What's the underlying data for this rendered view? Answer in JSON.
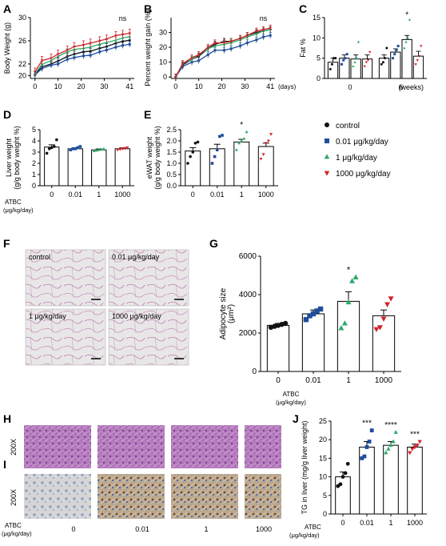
{
  "panels": {
    "A": "A",
    "B": "B",
    "C": "C",
    "D": "D",
    "E": "E",
    "F": "F",
    "G": "G",
    "H": "H",
    "I": "I",
    "J": "J"
  },
  "colors": {
    "control": "#111111",
    "d001": "#1f4e9c",
    "d1": "#2bab6d",
    "d1000": "#d0232a"
  },
  "legend": {
    "items": [
      {
        "label": "control",
        "marker": "circle",
        "color": "#111111"
      },
      {
        "label": "0.01 μg/kg/day",
        "marker": "square",
        "color": "#1f4e9c"
      },
      {
        "label": "1 μg/kg/day",
        "marker": "triangle-up",
        "color": "#2bab6d"
      },
      {
        "label": "1000  μg/kg/day",
        "marker": "triangle-down",
        "color": "#d0232a"
      }
    ]
  },
  "atbc_label_1": "ATBC",
  "atbc_label_2": "(μg/kg/day)",
  "histology": {
    "F_labels": [
      "control",
      "0.01 μg/kg/day",
      "1 μg/kg/day",
      "1000 μg/kg/day"
    ],
    "H_side": "200X",
    "I_side": "200X",
    "I_dose_labels": [
      "0",
      "0.01",
      "1",
      "1000"
    ]
  },
  "chart_data": [
    {
      "id": "A",
      "type": "line",
      "ylabel": "Body Weight (g)",
      "xlabel": "",
      "x": [
        0,
        3,
        7,
        10,
        14,
        17,
        21,
        24,
        28,
        31,
        35,
        38,
        41
      ],
      "xticks": [
        "0",
        "10",
        "20",
        "30",
        "41"
      ],
      "xtick_values": [
        0,
        10,
        20,
        30,
        41
      ],
      "yticks": [
        "20",
        "22",
        "26",
        "30"
      ],
      "ytick_values": [
        20,
        22,
        26,
        30
      ],
      "ylim": [
        19.5,
        30
      ],
      "xlim": [
        -2,
        43
      ],
      "annotation": "ns",
      "series": [
        {
          "name": "control",
          "values": [
            20.2,
            21.5,
            22.0,
            22.5,
            23.3,
            23.7,
            24.1,
            24.2,
            24.7,
            25.0,
            25.6,
            25.9,
            26.1
          ],
          "err": 0.5
        },
        {
          "name": "0.01 μg/kg/day",
          "values": [
            20.1,
            21.2,
            21.8,
            22.0,
            22.8,
            23.1,
            23.4,
            23.5,
            24.1,
            24.4,
            24.9,
            25.2,
            25.4
          ],
          "err": 0.5
        },
        {
          "name": "1 μg/kg/day",
          "values": [
            20.3,
            21.9,
            22.6,
            23.3,
            24.1,
            24.5,
            24.7,
            24.9,
            25.4,
            25.7,
            26.1,
            26.5,
            26.7
          ],
          "err": 0.5
        },
        {
          "name": "1000  μg/kg/day",
          "values": [
            20.6,
            22.6,
            23.0,
            23.7,
            24.4,
            25.0,
            25.3,
            25.6,
            26.0,
            26.3,
            26.9,
            27.1,
            27.3
          ],
          "err": 0.7
        }
      ]
    },
    {
      "id": "B",
      "type": "line",
      "ylabel": "Percent weight gain (%)",
      "xlabel": "(days)",
      "x": [
        0,
        3,
        7,
        10,
        14,
        17,
        21,
        24,
        28,
        31,
        35,
        38,
        41
      ],
      "xticks": [
        "0",
        "10",
        "20",
        "30",
        "41"
      ],
      "xtick_values": [
        0,
        10,
        20,
        30,
        41
      ],
      "yticks": [
        "0",
        "10",
        "20",
        "30"
      ],
      "ytick_values": [
        0,
        10,
        20,
        30
      ],
      "ylim": [
        -1,
        40
      ],
      "xlim": [
        -2,
        43
      ],
      "annotation": "ns",
      "series": [
        {
          "name": "control",
          "values": [
            0,
            8,
            12,
            14,
            19,
            22,
            24,
            24,
            26,
            28,
            30,
            31,
            32
          ],
          "err": 2
        },
        {
          "name": "0.01 μg/kg/day",
          "values": [
            0,
            7,
            10,
            11,
            15,
            18,
            18,
            19,
            21,
            23,
            25,
            27,
            28
          ],
          "err": 2
        },
        {
          "name": "1 μg/kg/day",
          "values": [
            0,
            9,
            12,
            15,
            19,
            21,
            22,
            23,
            25,
            27,
            29,
            31,
            32
          ],
          "err": 2
        },
        {
          "name": "1000  μg/kg/day",
          "values": [
            0,
            9,
            13,
            15,
            20,
            23,
            23,
            24,
            26,
            28,
            31,
            32,
            33
          ],
          "err": 2
        }
      ]
    },
    {
      "id": "C",
      "type": "bar",
      "ylabel": "Fat %",
      "xlabel": "(weeks)",
      "categories": [
        "0",
        "6"
      ],
      "yticks": [
        "0",
        "5",
        "10",
        "15"
      ],
      "ytick_values": [
        0,
        5,
        10,
        15
      ],
      "ylim": [
        0,
        15
      ],
      "series": [
        {
          "name": "control",
          "values": [
            4.0,
            5.0
          ],
          "err": [
            1.0,
            0.8
          ],
          "points": [
            [
              2.3,
              3.5,
              5.0,
              5.0
            ],
            [
              3.5,
              4.0,
              5.0,
              7.5
            ]
          ]
        },
        {
          "name": "0.01 μg/kg/day",
          "values": [
            5.0,
            6.5
          ],
          "err": [
            0.8,
            0.8
          ],
          "points": [
            [
              3.5,
              4.5,
              5.0,
              6.0
            ],
            [
              5.0,
              6.0,
              7.0,
              8.0
            ]
          ]
        },
        {
          "name": "1 μg/kg/day",
          "values": [
            4.8,
            9.6
          ],
          "err": [
            1.0,
            1.0
          ],
          "points": [
            [
              3.0,
              4.0,
              5.0,
              9.0
            ],
            [
              7.5,
              9.0,
              10.0,
              14.5
            ]
          ]
        },
        {
          "name": "1000  μg/kg/day",
          "values": [
            4.8,
            5.5
          ],
          "err": [
            1.0,
            1.2
          ],
          "points": [
            [
              3.0,
              4.0,
              4.5,
              6.5
            ],
            [
              3.5,
              4.5,
              5.5,
              8.0
            ]
          ]
        }
      ],
      "annotations": [
        {
          "text": "*",
          "category": "6",
          "series": 2
        }
      ]
    },
    {
      "id": "D",
      "type": "bar",
      "ylabel": "Liver weight (g/g body weight %)",
      "categories": [
        "0",
        "0.01",
        "1",
        "1000"
      ],
      "values": [
        3.45,
        3.3,
        3.2,
        3.3
      ],
      "err": [
        0.2,
        0.1,
        0.08,
        0.08
      ],
      "points": [
        [
          2.9,
          3.3,
          3.4,
          3.5,
          4.1
        ],
        [
          3.2,
          3.3,
          3.3,
          3.4,
          3.5
        ],
        [
          3.1,
          3.15,
          3.2,
          3.25,
          3.3
        ],
        [
          3.2,
          3.25,
          3.3,
          3.35,
          3.4
        ]
      ],
      "yticks": [
        "0",
        "1",
        "2",
        "3",
        "4",
        "5"
      ],
      "ytick_values": [
        0,
        1,
        2,
        3,
        4,
        5
      ],
      "ylim": [
        0,
        5
      ]
    },
    {
      "id": "E",
      "type": "bar",
      "ylabel": "eWAT weight (g/g body weight %)",
      "categories": [
        "0",
        "0.01",
        "1",
        "1000"
      ],
      "values": [
        1.55,
        1.65,
        1.95,
        1.75
      ],
      "err": [
        0.15,
        0.2,
        0.12,
        0.15
      ],
      "points": [
        [
          1.0,
          1.3,
          1.5,
          1.9,
          1.95
        ],
        [
          1.0,
          1.3,
          1.6,
          2.2,
          2.25
        ],
        [
          1.6,
          1.9,
          2.0,
          2.1,
          2.4
        ],
        [
          1.2,
          1.4,
          1.9,
          2.0,
          2.3
        ]
      ],
      "yticks": [
        "0.0",
        "0.5",
        "1.0",
        "1.5",
        "2.0",
        "2.5"
      ],
      "ytick_values": [
        0,
        0.5,
        1,
        1.5,
        2,
        2.5
      ],
      "ylim": [
        0,
        2.5
      ],
      "annotations": [
        {
          "text": "*",
          "index": 2
        }
      ]
    },
    {
      "id": "G",
      "type": "bar",
      "ylabel": "Adipocyte size (μm²)",
      "categories": [
        "0",
        "0.01",
        "1",
        "1000"
      ],
      "values": [
        2400,
        3000,
        3650,
        2900
      ],
      "err": [
        100,
        200,
        500,
        300
      ],
      "points": [
        [
          2300,
          2350,
          2400,
          2450,
          2500
        ],
        [
          2700,
          2900,
          3000,
          3150,
          3250
        ],
        [
          2250,
          2500,
          3600,
          4700,
          4900
        ],
        [
          2200,
          2300,
          2750,
          3500,
          3800
        ]
      ],
      "yticks": [
        "0",
        "2000",
        "4000",
        "6000"
      ],
      "ytick_values": [
        0,
        2000,
        4000,
        6000
      ],
      "ylim": [
        0,
        6000
      ],
      "annotations": [
        {
          "text": "*",
          "index": 2
        }
      ]
    },
    {
      "id": "J",
      "type": "bar",
      "ylabel": "TG in liver  (mg/g liver weight)",
      "categories": [
        "0",
        "0.01",
        "1",
        "1000"
      ],
      "values": [
        10.0,
        18.0,
        18.5,
        18.0
      ],
      "err": [
        1.3,
        1.5,
        1.0,
        0.8
      ],
      "points": [
        [
          7.5,
          8.0,
          10.0,
          11.0,
          13.5
        ],
        [
          15.0,
          15.5,
          18.0,
          19.5,
          22.5
        ],
        [
          16.5,
          17.5,
          18.5,
          19.5,
          22.0
        ],
        [
          16.5,
          17.5,
          18.0,
          18.5,
          19.5
        ]
      ],
      "yticks": [
        "0",
        "5",
        "10",
        "15",
        "20",
        "25"
      ],
      "ytick_values": [
        0,
        5,
        10,
        15,
        20,
        25
      ],
      "ylim": [
        0,
        25
      ],
      "annotations": [
        {
          "text": "***",
          "index": 1
        },
        {
          "text": "****",
          "index": 2
        },
        {
          "text": "***",
          "index": 3
        }
      ]
    }
  ]
}
